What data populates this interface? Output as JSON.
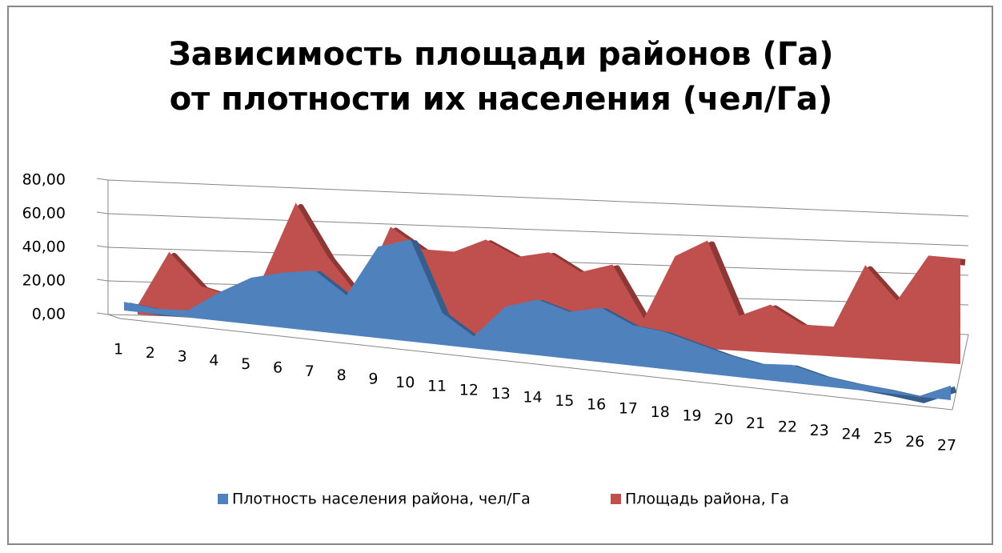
{
  "chart_data": {
    "type": "area3d",
    "title": "Зависимость площади районов (Га) от плотности их населения (чел/Га)",
    "categories": [
      "1",
      "2",
      "3",
      "4",
      "5",
      "6",
      "7",
      "8",
      "9",
      "10",
      "11",
      "12",
      "13",
      "14",
      "15",
      "16",
      "17",
      "18",
      "19",
      "20",
      "21",
      "22",
      "23",
      "24",
      "25",
      "26",
      "27"
    ],
    "series": [
      {
        "name": "Плотность населения района, чел/Га",
        "color": "#4f81bd",
        "values": [
          5,
          3,
          4,
          18,
          30,
          36,
          40,
          26,
          62,
          70,
          22,
          8,
          32,
          40,
          34,
          40,
          30,
          28,
          22,
          16,
          12,
          14,
          8,
          5,
          3,
          0,
          12
        ]
      },
      {
        "name": "Площадь района, Га",
        "color": "#c0504d",
        "values": [
          5,
          40,
          20,
          15,
          30,
          78,
          45,
          20,
          68,
          55,
          55,
          65,
          55,
          60,
          48,
          55,
          18,
          65,
          78,
          25,
          35,
          22,
          22,
          70,
          45,
          82,
          82
        ]
      }
    ],
    "ylim": [
      0,
      80
    ],
    "yticks": [
      {
        "value": 0,
        "label": "0,00"
      },
      {
        "value": 20,
        "label": "20,00"
      },
      {
        "value": 40,
        "label": "40,00"
      },
      {
        "value": 60,
        "label": "60,00"
      },
      {
        "value": 80,
        "label": "80,00"
      }
    ],
    "grid": true
  }
}
